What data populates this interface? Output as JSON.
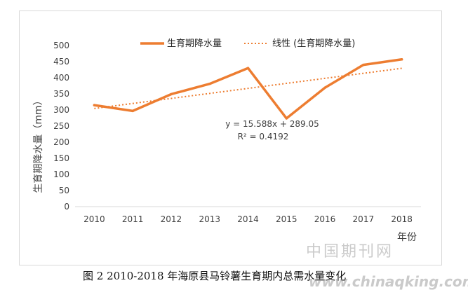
{
  "chart_data": {
    "type": "line",
    "ylabel": "生育期降水量（mm）",
    "xlabel": "年份",
    "ylim": [
      0,
      500
    ],
    "yticks": [
      0,
      50,
      100,
      150,
      200,
      250,
      300,
      350,
      400,
      450,
      500
    ],
    "categories": [
      "2010",
      "2011",
      "2012",
      "2013",
      "2014",
      "2015",
      "2016",
      "2017",
      "2018"
    ],
    "series": [
      {
        "name": "生育期降水量",
        "values": [
          315,
          297,
          349,
          381,
          430,
          274,
          369,
          440,
          457
        ],
        "style": "solid"
      },
      {
        "name": "线性 (生育期降水量)",
        "style": "dotted",
        "trend": {
          "slope": 15.588,
          "intercept": 289.05
        }
      }
    ],
    "annotations": {
      "equation": "y = 15.588x + 289.05",
      "r2": "R² = 0.4192"
    },
    "legend_position": "top",
    "grid": false,
    "line_color": "#ED7D31"
  },
  "caption": "图 2   2010-2018 年海原县马铃薯生育期内总需水量变化",
  "watermark": {
    "cn": "中国期刊网",
    "url": "www.chinaqking.com"
  }
}
